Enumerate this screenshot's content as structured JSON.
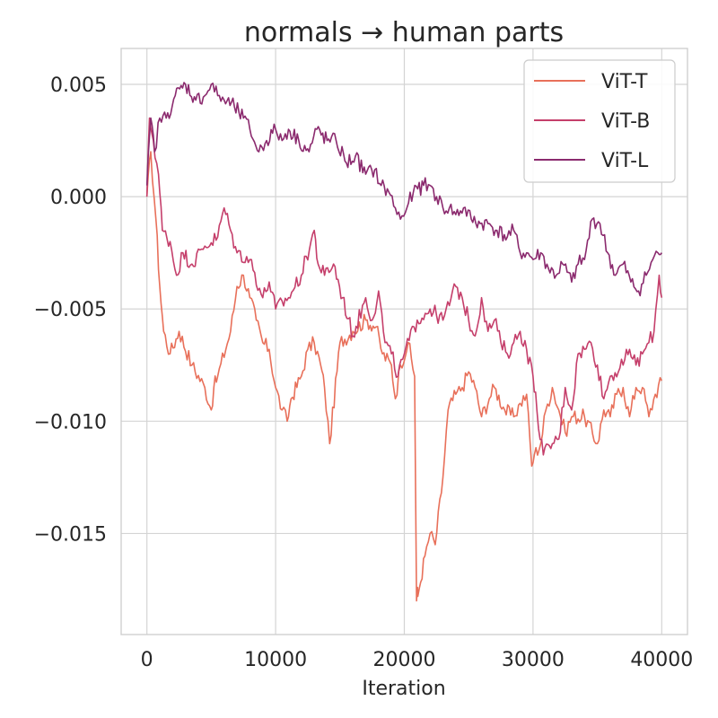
{
  "chart_data": {
    "type": "line",
    "title": "normals → human parts",
    "xlabel": "Iteration",
    "ylabel": "",
    "xlim": [
      -2000,
      42000
    ],
    "ylim": [
      -0.0195,
      0.0066
    ],
    "xticks": [
      0,
      10000,
      20000,
      30000,
      40000
    ],
    "xtick_labels": [
      "0",
      "10000",
      "20000",
      "30000",
      "40000"
    ],
    "yticks": [
      0.005,
      0.0,
      -0.005,
      -0.01,
      -0.015
    ],
    "ytick_labels": [
      "0.005",
      "0.000",
      "−0.005",
      "−0.010",
      "−0.015"
    ],
    "grid": true,
    "legend_position": "top-right",
    "series": [
      {
        "name": "ViT-T",
        "color": "#e8705a",
        "x": [
          0,
          300,
          700,
          1000,
          1300,
          1800,
          2500,
          3500,
          4500,
          5000,
          5200,
          5500,
          6500,
          7000,
          7500,
          8000,
          8500,
          9000,
          9500,
          10000,
          10500,
          10900,
          11200,
          12000,
          12500,
          13000,
          13500,
          13800,
          14200,
          15000,
          16000,
          17000,
          17800,
          18300,
          19000,
          19300,
          19700,
          20300,
          20800,
          20950,
          21000,
          21050,
          21600,
          22000,
          22400,
          23000,
          23400,
          24000,
          24500,
          25000,
          25500,
          26000,
          26600,
          27000,
          27800,
          28500,
          29000,
          29500,
          29900,
          30100,
          30600,
          31000,
          31500,
          32000,
          32500,
          33000,
          34000,
          35000,
          35500,
          36000,
          36500,
          37000,
          37500,
          38000,
          38500,
          39000,
          39500,
          40000
        ],
        "values": [
          0.0,
          0.002,
          -0.001,
          -0.004,
          -0.006,
          -0.007,
          -0.006,
          -0.0075,
          -0.0085,
          -0.0095,
          -0.0085,
          -0.008,
          -0.006,
          -0.004,
          -0.0035,
          -0.0045,
          -0.0055,
          -0.0065,
          -0.0068,
          -0.0085,
          -0.0095,
          -0.01,
          -0.009,
          -0.008,
          -0.0068,
          -0.0065,
          -0.0075,
          -0.0085,
          -0.011,
          -0.0065,
          -0.006,
          -0.0055,
          -0.0058,
          -0.007,
          -0.0075,
          -0.009,
          -0.0075,
          -0.0065,
          -0.008,
          -0.018,
          -0.0175,
          -0.0178,
          -0.016,
          -0.015,
          -0.0155,
          -0.0125,
          -0.0095,
          -0.0088,
          -0.0085,
          -0.0078,
          -0.0085,
          -0.0098,
          -0.009,
          -0.0085,
          -0.0095,
          -0.0098,
          -0.0092,
          -0.0088,
          -0.012,
          -0.0115,
          -0.011,
          -0.0095,
          -0.0085,
          -0.0095,
          -0.0105,
          -0.0098,
          -0.0098,
          -0.011,
          -0.0095,
          -0.0098,
          -0.0088,
          -0.0085,
          -0.0098,
          -0.0085,
          -0.0085,
          -0.0098,
          -0.0088,
          -0.0082
        ]
      },
      {
        "name": "ViT-B",
        "color": "#c53f6b",
        "x": [
          0,
          200,
          500,
          900,
          1200,
          1800,
          2300,
          2800,
          3500,
          4500,
          5500,
          6000,
          6500,
          7000,
          8000,
          9000,
          9500,
          10000,
          11000,
          12000,
          13000,
          13300,
          13800,
          14500,
          15200,
          16000,
          17000,
          17500,
          18000,
          18500,
          19000,
          19500,
          20000,
          21000,
          22000,
          23000,
          24000,
          24500,
          25000,
          25500,
          26000,
          26500,
          27000,
          27500,
          28000,
          28500,
          29000,
          29500,
          30000,
          30300,
          30800,
          31500,
          32000,
          32500,
          33000,
          33500,
          34000,
          34500,
          35000,
          35500,
          36000,
          37000,
          37500,
          38000,
          38500,
          39000,
          39400,
          39800,
          40000
        ],
        "values": [
          0.0,
          0.0035,
          0.0025,
          0.001,
          -0.0015,
          -0.002,
          -0.0035,
          -0.0025,
          -0.003,
          -0.0022,
          -0.0018,
          -0.0005,
          -0.0015,
          -0.0025,
          -0.0028,
          -0.0045,
          -0.0038,
          -0.005,
          -0.0045,
          -0.0035,
          -0.0015,
          -0.003,
          -0.0035,
          -0.003,
          -0.0045,
          -0.0062,
          -0.0045,
          -0.0055,
          -0.0042,
          -0.0065,
          -0.007,
          -0.008,
          -0.007,
          -0.0055,
          -0.005,
          -0.0055,
          -0.004,
          -0.0045,
          -0.0055,
          -0.0062,
          -0.0045,
          -0.006,
          -0.0055,
          -0.0065,
          -0.007,
          -0.0065,
          -0.006,
          -0.0068,
          -0.008,
          -0.0095,
          -0.0115,
          -0.011,
          -0.0108,
          -0.0085,
          -0.0095,
          -0.007,
          -0.0068,
          -0.0065,
          -0.0075,
          -0.009,
          -0.008,
          -0.0075,
          -0.0068,
          -0.0075,
          -0.007,
          -0.0065,
          -0.006,
          -0.0035,
          -0.0045
        ]
      },
      {
        "name": "ViT-L",
        "color": "#8b2a6e",
        "x": [
          0,
          300,
          600,
          1000,
          1500,
          2200,
          3000,
          3800,
          4500,
          5000,
          5500,
          6000,
          6800,
          7500,
          8000,
          8700,
          9300,
          10000,
          10500,
          11000,
          11800,
          12600,
          13200,
          14000,
          14700,
          15500,
          16200,
          17000,
          17700,
          18200,
          18800,
          19300,
          19700,
          20200,
          20700,
          21500,
          22000,
          22500,
          23000,
          23500,
          24000,
          24600,
          25200,
          25900,
          26500,
          27200,
          28000,
          28500,
          29000,
          29500,
          30000,
          30600,
          31200,
          31800,
          32300,
          33000,
          33500,
          34000,
          34600,
          35200,
          35800,
          36400,
          37000,
          37600,
          38200,
          38800,
          39300,
          39700,
          40000
        ],
        "values": [
          0.0005,
          0.0035,
          0.002,
          0.0035,
          0.0035,
          0.0045,
          0.005,
          0.0043,
          0.0045,
          0.005,
          0.0045,
          0.0043,
          0.004,
          0.0035,
          0.003,
          0.002,
          0.0025,
          0.003,
          0.0025,
          0.003,
          0.0025,
          0.002,
          0.003,
          0.0025,
          0.0025,
          0.0015,
          0.0018,
          0.001,
          0.0012,
          0.0005,
          0.0002,
          -0.0005,
          -0.001,
          -0.0005,
          0.0002,
          0.0005,
          0.0005,
          0.0,
          -0.0005,
          -0.0005,
          -0.0008,
          -0.0005,
          -0.001,
          -0.0012,
          -0.0012,
          -0.0015,
          -0.0018,
          -0.0015,
          -0.0025,
          -0.0025,
          -0.0028,
          -0.0025,
          -0.0032,
          -0.0035,
          -0.003,
          -0.0038,
          -0.003,
          -0.0028,
          -0.001,
          -0.0012,
          -0.0025,
          -0.0035,
          -0.003,
          -0.0038,
          -0.0042,
          -0.0035,
          -0.0028,
          -0.0025,
          -0.0025
        ]
      }
    ]
  }
}
